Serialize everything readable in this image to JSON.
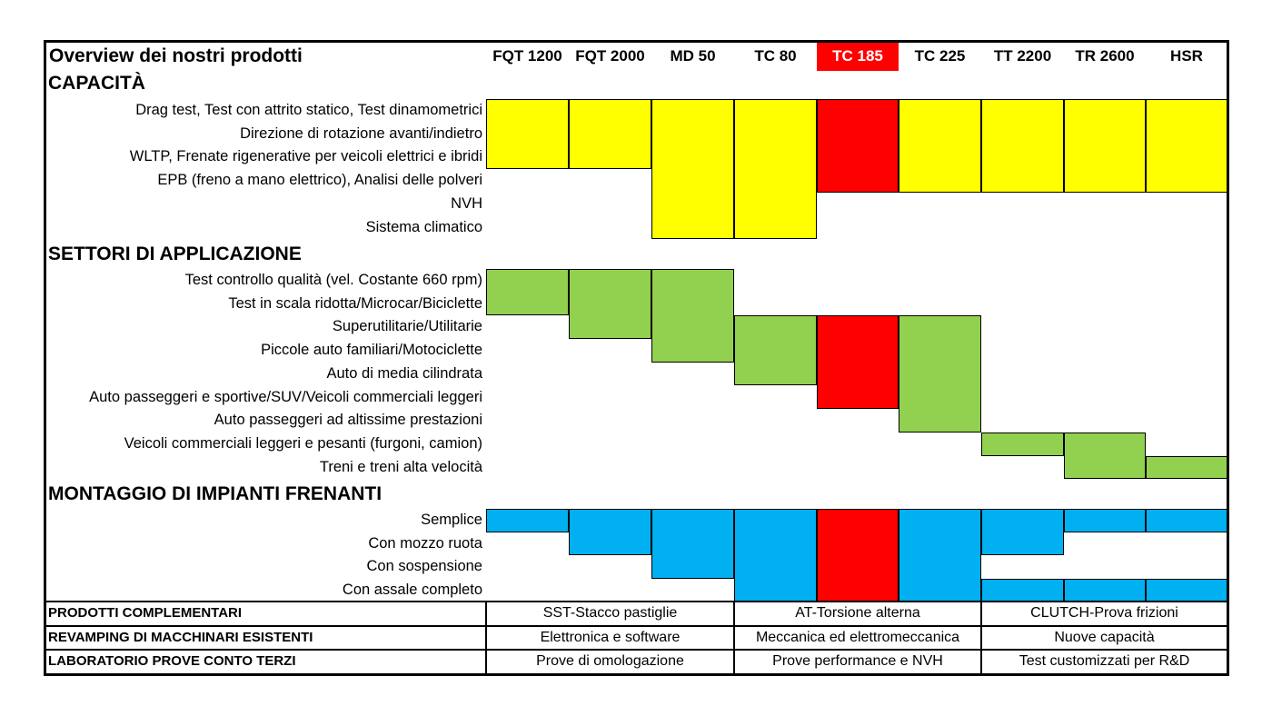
{
  "chart_data": {
    "type": "table",
    "title": "Overview dei nostri prodotti",
    "products": [
      "FQT 1200",
      "FQT 2000",
      "MD 50",
      "TC 80",
      "TC 185",
      "TC 225",
      "TT 2200",
      "TR 2600",
      "HSR"
    ],
    "highlight_product": "TC 185",
    "colors": {
      "capacita": "#FFFF00",
      "settori": "#92D050",
      "montaggio": "#00B0F0",
      "highlight": "#FF0000",
      "border": "#000000"
    },
    "sections": [
      {
        "name": "CAPACITÀ",
        "color": "#FFFF00",
        "rows": [
          "Drag test, Test con attrito statico, Test dinamometrici",
          "Direzione di rotazione avanti/indietro",
          "WLTP, Frenate rigenerative per veicoli elettrici e ibridi",
          "EPB (freno a mano elettrico), Analisi delle polveri",
          "NVH",
          "Sistema climatico"
        ],
        "coverage": [
          [
            0,
            2
          ],
          [
            0,
            2
          ],
          [
            0,
            5
          ],
          [
            0,
            5
          ],
          [
            0,
            3
          ],
          [
            0,
            3
          ],
          [
            0,
            3
          ],
          [
            0,
            3
          ],
          [
            0,
            3
          ]
        ]
      },
      {
        "name": "SETTORI DI APPLICAZIONE",
        "color": "#92D050",
        "rows": [
          "Test controllo qualità (vel. Costante 660 rpm)",
          "Test in scala ridotta/Microcar/Biciclette",
          "Superutilitarie/Utilitarie",
          "Piccole auto familiari/Motociclette",
          "Auto di media cilindrata",
          "Auto passeggeri e sportive/SUV/Veicoli commerciali leggeri",
          "Auto passeggeri ad altissime prestazioni",
          "Veicoli commerciali leggeri e pesanti (furgoni, camion)",
          "Treni e treni alta velocità"
        ],
        "coverage": [
          [
            0,
            1
          ],
          [
            0,
            2
          ],
          [
            0,
            3
          ],
          [
            2,
            4
          ],
          [
            2,
            5
          ],
          [
            2,
            6
          ],
          [
            7,
            7
          ],
          [
            7,
            8
          ],
          [
            8,
            8
          ]
        ]
      },
      {
        "name": "MONTAGGIO DI IMPIANTI FRENANTI",
        "color": "#00B0F0",
        "rows": [
          "Semplice",
          "Con mozzo ruota",
          "Con sospensione",
          "Con assale completo"
        ],
        "coverage": [
          [
            0,
            0
          ],
          [
            0,
            1
          ],
          [
            0,
            2
          ],
          [
            0,
            3
          ],
          [
            0,
            3
          ],
          [
            0,
            3
          ],
          [
            0,
            1
          ],
          [
            0,
            0
          ],
          [
            0,
            0
          ]
        ],
        "coverage_extra": [
          [],
          [],
          [],
          [],
          [],
          [],
          [
            [
              3,
              3
            ]
          ],
          [
            [
              3,
              3
            ]
          ],
          [
            [
              3,
              3
            ]
          ]
        ]
      }
    ],
    "bottom_table": [
      {
        "label": "PRODOTTI COMPLEMENTARI",
        "cells": [
          "SST-Stacco pastiglie",
          "AT-Torsione alterna",
          "CLUTCH-Prova frizioni"
        ]
      },
      {
        "label": "REVAMPING DI MACCHINARI ESISTENTI",
        "cells": [
          "Elettronica e software",
          "Meccanica ed elettromeccanica",
          "Nuove capacità"
        ]
      },
      {
        "label": "LABORATORIO PROVE CONTO TERZI",
        "cells": [
          "Prove di omologazione",
          "Prove performance e NVH",
          "Test customizzati per R&D"
        ]
      }
    ]
  }
}
